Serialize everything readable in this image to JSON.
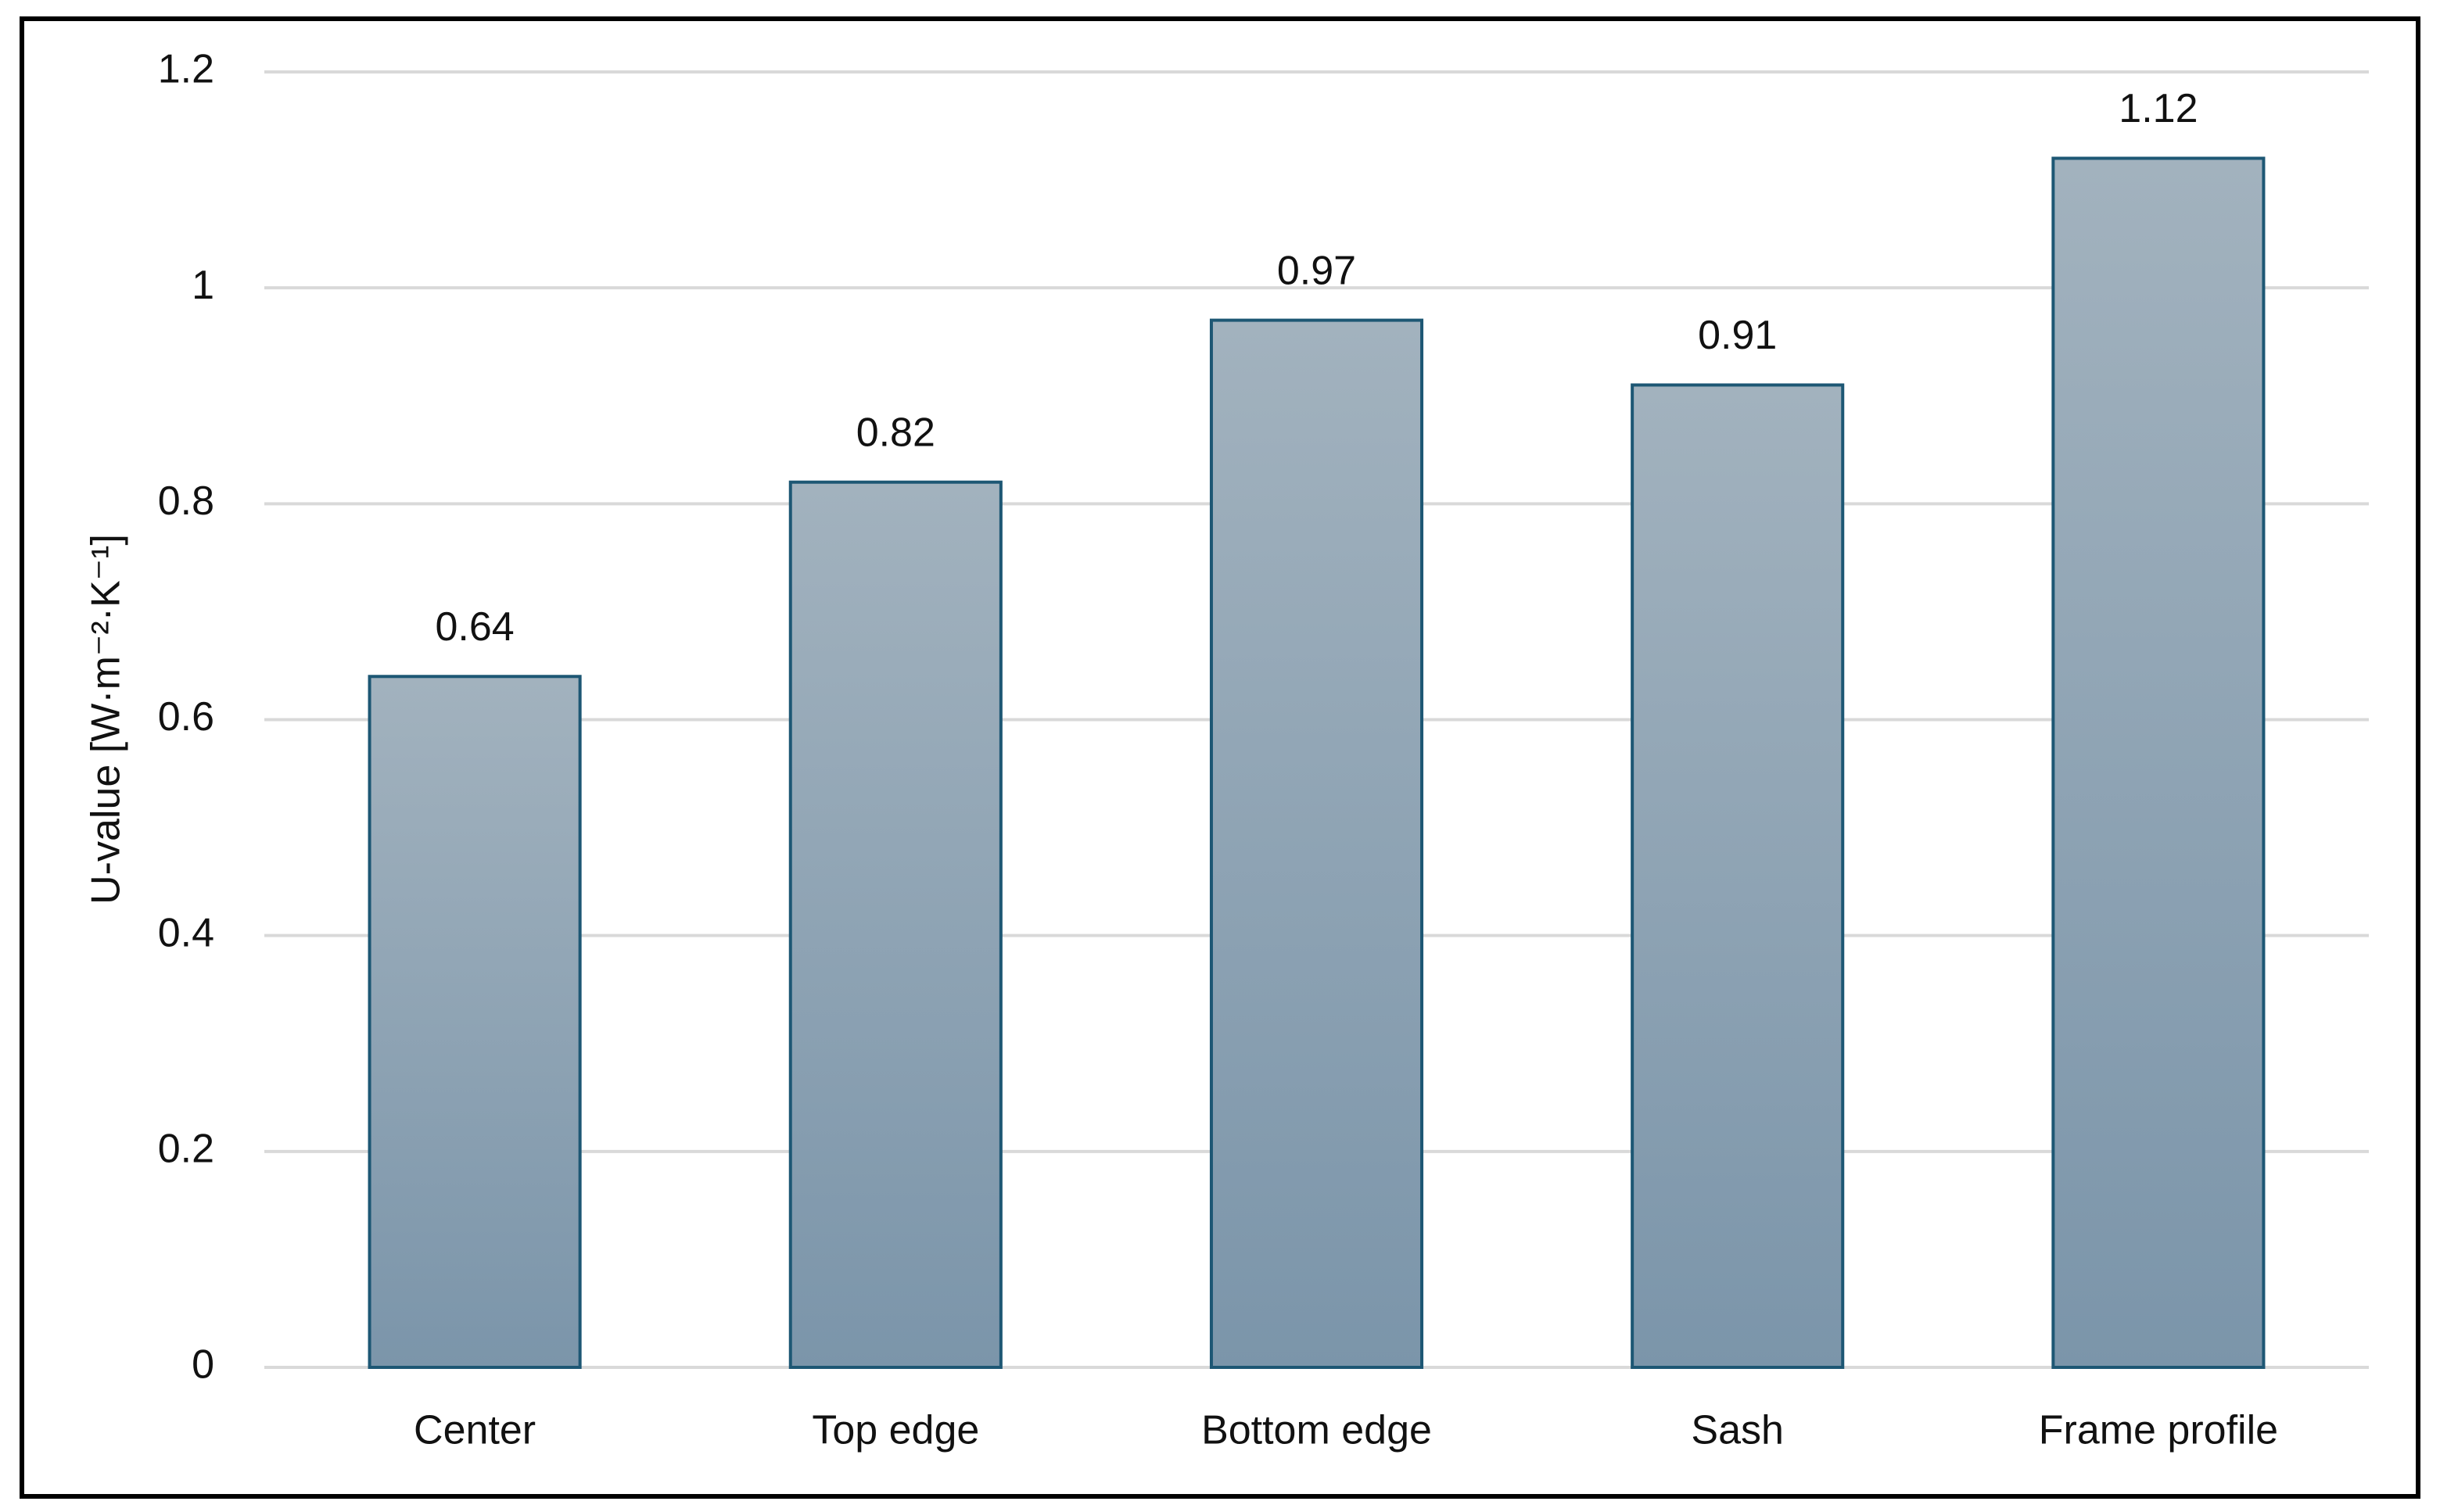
{
  "chart_data": {
    "type": "bar",
    "y_label": "U-value [W·m⁻²·K⁻¹]",
    "categories": [
      "Center",
      "Top edge",
      "Bottom edge",
      "Sash",
      "Frame profile"
    ],
    "values": [
      0.64,
      0.82,
      0.97,
      0.91,
      1.12
    ],
    "color": "#8ea3b5",
    "ylim": [
      0,
      1.2
    ],
    "yticks": [
      0,
      0.2,
      0.4,
      0.6,
      0.8,
      1,
      1.2
    ],
    "grid": true
  }
}
